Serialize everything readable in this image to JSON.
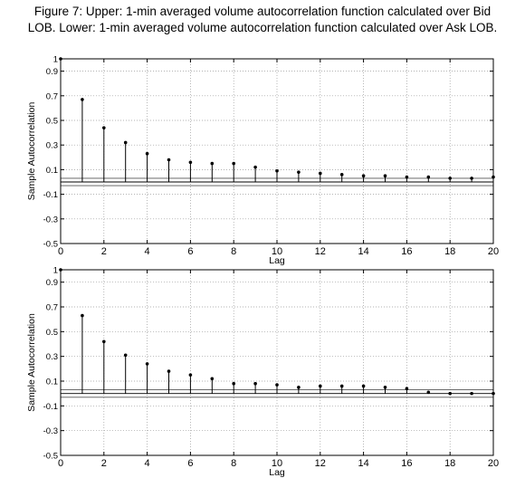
{
  "caption": {
    "line1": "Figure 7: Upper: 1-min averaged volume autocorrelation function calculated over Bid",
    "line2": "LOB. Lower: 1-min averaged volume autocorrelation function calculated over Ask LOB."
  },
  "chart_data": [
    {
      "type": "stem",
      "title": "",
      "xlabel": "Lag",
      "ylabel": "Sample Autocorrelation",
      "xlim": [
        0,
        20
      ],
      "ylim": [
        -0.5,
        1
      ],
      "x_ticks": [
        "0",
        "2",
        "4",
        "6",
        "8",
        "10",
        "12",
        "14",
        "16",
        "18",
        "20"
      ],
      "y_ticks": [
        "-0.5",
        "-0.3",
        "-0.1",
        "0.1",
        "0.3",
        "0.5",
        "0.7",
        "0.9",
        "1"
      ],
      "grid": true,
      "bounds": [
        0.03,
        -0.03
      ],
      "series": [
        {
          "x": [
            0,
            1,
            2,
            3,
            4,
            5,
            6,
            7,
            8,
            9,
            10,
            11,
            12,
            13,
            14,
            15,
            16,
            17,
            18,
            19,
            20
          ],
          "values": [
            1.0,
            0.67,
            0.44,
            0.32,
            0.23,
            0.18,
            0.16,
            0.15,
            0.15,
            0.12,
            0.09,
            0.08,
            0.07,
            0.06,
            0.05,
            0.05,
            0.04,
            0.04,
            0.03,
            0.03,
            0.04
          ]
        }
      ]
    },
    {
      "type": "stem",
      "title": "",
      "xlabel": "Lag",
      "ylabel": "Sample Autocorrelation",
      "xlim": [
        0,
        20
      ],
      "ylim": [
        -0.5,
        1
      ],
      "x_ticks": [
        "0",
        "2",
        "4",
        "6",
        "8",
        "10",
        "12",
        "14",
        "16",
        "18",
        "20"
      ],
      "y_ticks": [
        "-0.5",
        "-0.3",
        "-0.1",
        "0.1",
        "0.3",
        "0.5",
        "0.7",
        "0.9",
        "1"
      ],
      "grid": true,
      "bounds": [
        0.03,
        -0.03
      ],
      "series": [
        {
          "x": [
            0,
            1,
            2,
            3,
            4,
            5,
            6,
            7,
            8,
            9,
            10,
            11,
            12,
            13,
            14,
            15,
            16,
            17,
            18,
            19,
            20
          ],
          "values": [
            1.0,
            0.63,
            0.42,
            0.31,
            0.24,
            0.18,
            0.15,
            0.12,
            0.08,
            0.08,
            0.07,
            0.05,
            0.06,
            0.06,
            0.06,
            0.05,
            0.04,
            0.01,
            0.0,
            0.0,
            0.0
          ]
        }
      ]
    }
  ]
}
